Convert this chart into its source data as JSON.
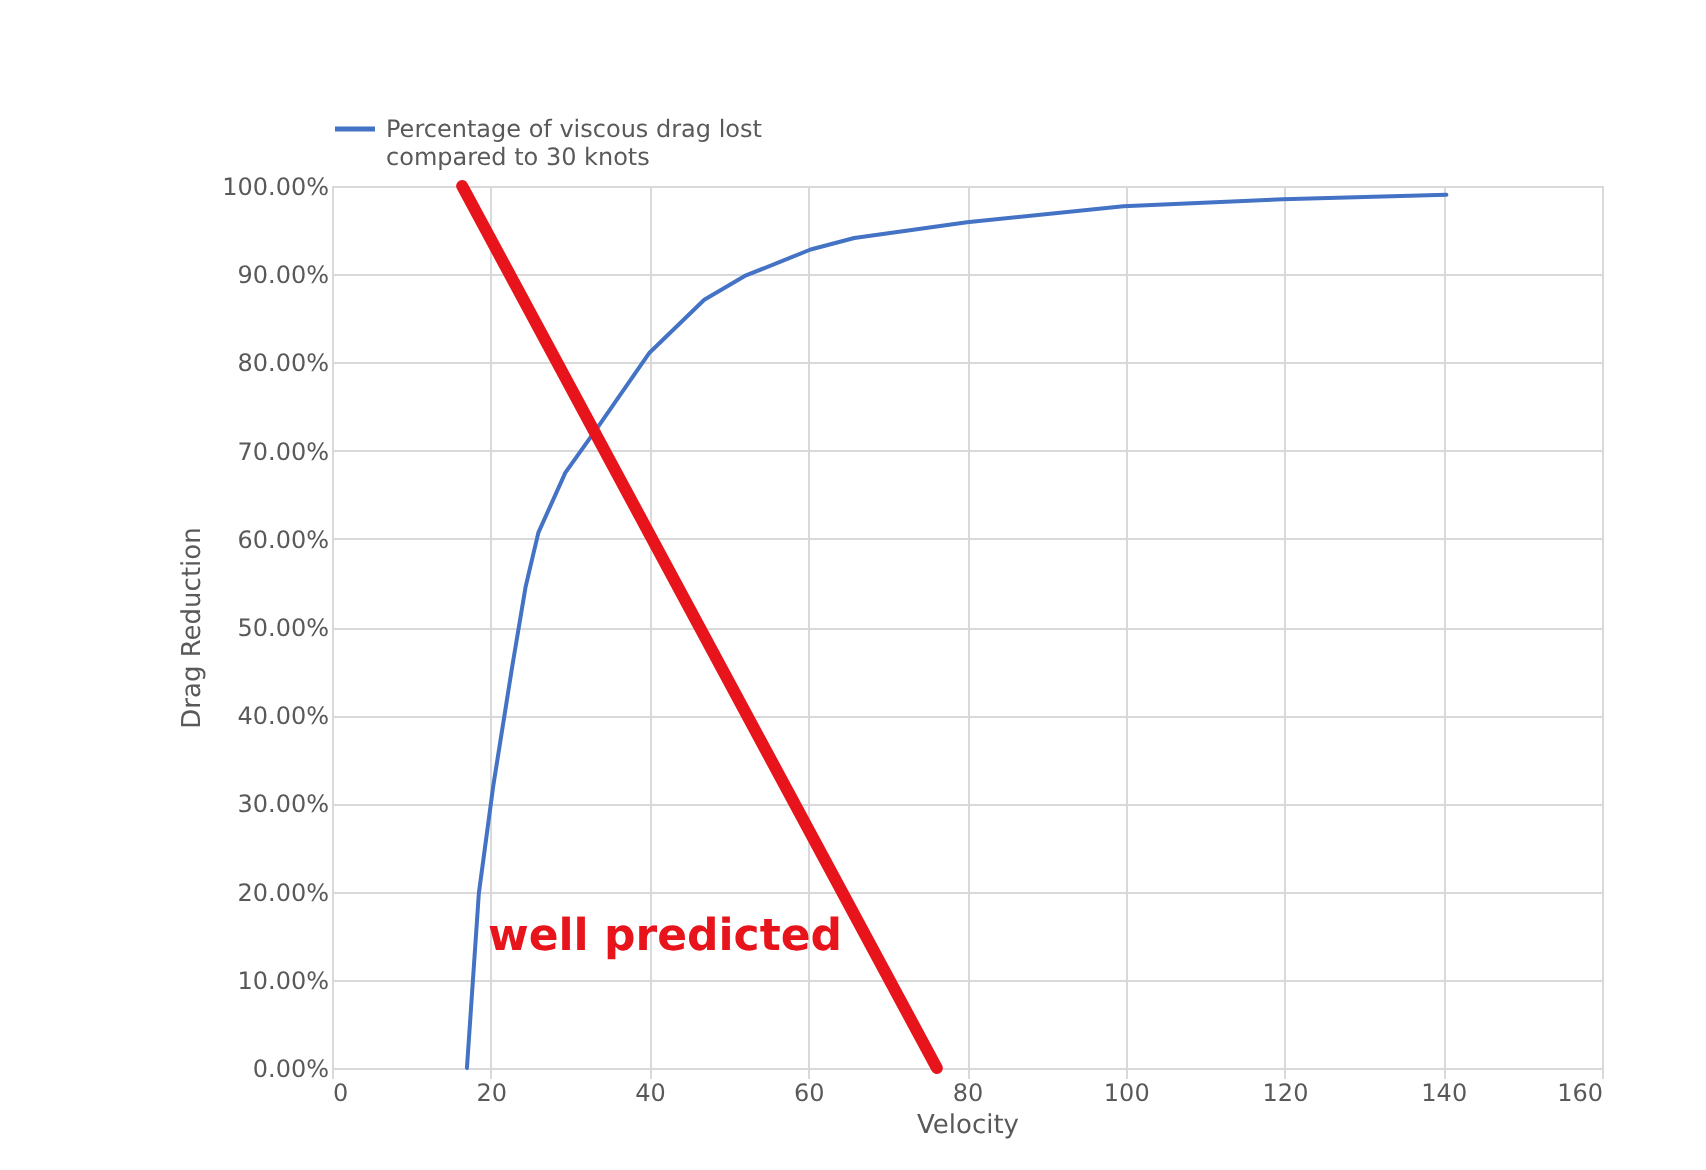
{
  "chart_data": {
    "type": "line",
    "xlabel": "Velocity",
    "ylabel": "Drag Reduction",
    "xlim": [
      0,
      160
    ],
    "xticks": [
      0,
      20,
      40,
      60,
      80,
      100,
      120,
      140,
      160
    ],
    "ylim": [
      0,
      100
    ],
    "yticks": [
      {
        "value": 0,
        "label": "0.00%"
      },
      {
        "value": 10,
        "label": "10.00%"
      },
      {
        "value": 20,
        "label": "20.00%"
      },
      {
        "value": 30,
        "label": "30.00%"
      },
      {
        "value": 40,
        "label": "40.00%"
      },
      {
        "value": 50,
        "label": "50.00%"
      },
      {
        "value": 60,
        "label": "60.00%"
      },
      {
        "value": 70,
        "label": "70.00%"
      },
      {
        "value": 80,
        "label": "80.00%"
      },
      {
        "value": 90,
        "label": "90.00%"
      },
      {
        "value": 100,
        "label": "100.00%"
      }
    ],
    "grid": true,
    "legend": "top",
    "marker": "none",
    "line_style": "solid",
    "series": [
      {
        "name": "Percentage of viscous drag lost compared to 30 knots",
        "color": "#4472c4",
        "x": [
          17.0,
          18.5,
          20.3,
          22.7,
          24.4,
          26.0,
          29.4,
          33.6,
          40.0,
          46.9,
          52.0,
          60.3,
          65.8,
          73.7,
          80.0,
          99.7,
          119.8,
          140.4
        ],
        "values": [
          0,
          19.8,
          31.9,
          45.5,
          54.6,
          60.7,
          67.5,
          72.8,
          81.1,
          87.1,
          89.8,
          92.8,
          94.1,
          95.1,
          95.9,
          97.7,
          98.5,
          99.0
        ]
      },
      {
        "color": "#e8141c",
        "x": [
          16.4,
          76.2
        ],
        "values": [
          100,
          0
        ]
      }
    ],
    "annotations": [
      "well predicted"
    ]
  }
}
